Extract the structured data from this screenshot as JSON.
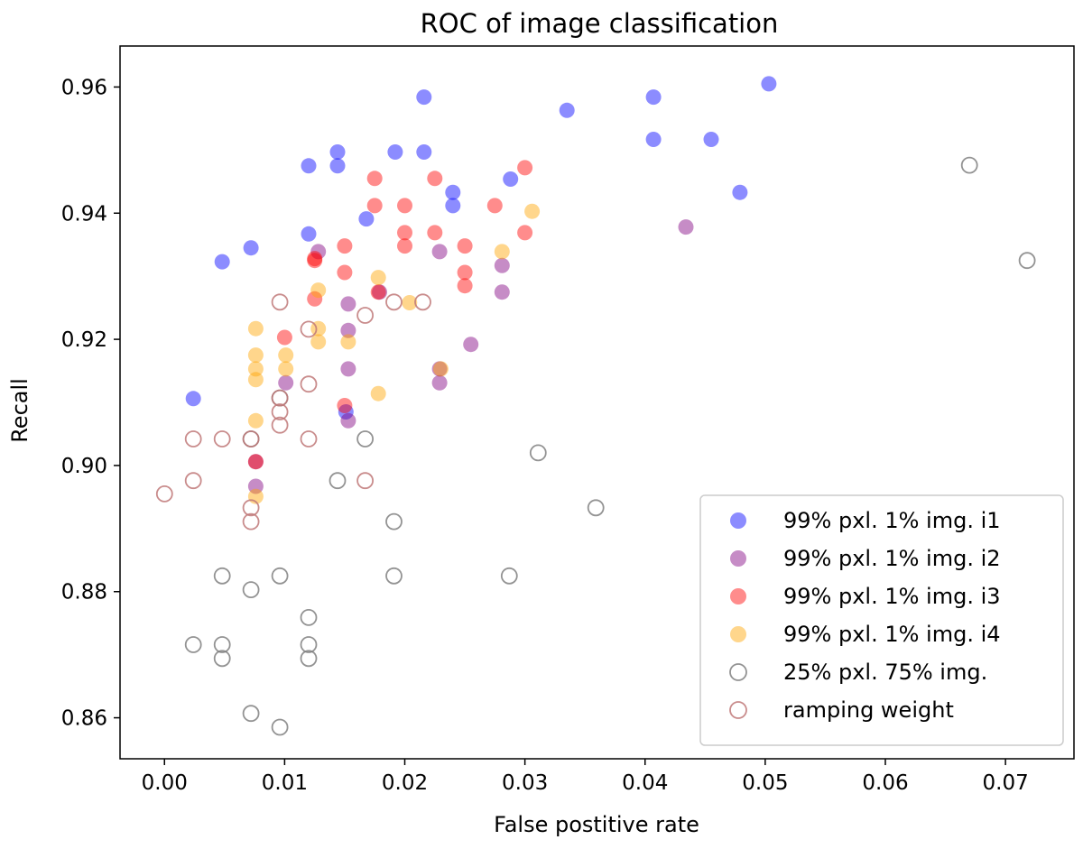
{
  "chart_data": {
    "type": "scatter",
    "title": "ROC of image classification",
    "xlabel": "False postitive rate",
    "ylabel": "Recall",
    "xlim": [
      -0.0037,
      0.0757
    ],
    "ylim": [
      0.8535,
      0.9665
    ],
    "xticks": [
      0.0,
      0.01,
      0.02,
      0.03,
      0.04,
      0.05,
      0.06,
      0.07
    ],
    "xtick_labels": [
      "0.00",
      "0.01",
      "0.02",
      "0.03",
      "0.04",
      "0.05",
      "0.06",
      "0.07"
    ],
    "yticks": [
      0.86,
      0.88,
      0.9,
      0.92,
      0.94,
      0.96
    ],
    "ytick_labels": [
      "0.86",
      "0.88",
      "0.90",
      "0.92",
      "0.94",
      "0.96"
    ],
    "grid": false,
    "legend_position": "lower-right",
    "series": [
      {
        "name": "99% pxl. 1% img. i1",
        "color": "#0000ff",
        "filled": true,
        "points": [
          [
            0.0024,
            0.9106
          ],
          [
            0.0048,
            0.9323
          ],
          [
            0.0072,
            0.9345
          ],
          [
            0.012,
            0.9475
          ],
          [
            0.012,
            0.9367
          ],
          [
            0.0144,
            0.9497
          ],
          [
            0.0144,
            0.9475
          ],
          [
            0.0168,
            0.9391
          ],
          [
            0.0192,
            0.9497
          ],
          [
            0.0216,
            0.9584
          ],
          [
            0.0216,
            0.9497
          ],
          [
            0.024,
            0.9433
          ],
          [
            0.024,
            0.9412
          ],
          [
            0.0288,
            0.9454
          ],
          [
            0.0335,
            0.9563
          ],
          [
            0.0407,
            0.9584
          ],
          [
            0.0407,
            0.9517
          ],
          [
            0.0455,
            0.9517
          ],
          [
            0.0479,
            0.9433
          ],
          [
            0.0503,
            0.9605
          ],
          [
            0.0151,
            0.9085
          ]
        ]
      },
      {
        "name": "99% pxl. 1% img. i2",
        "color": "#800080",
        "filled": true,
        "points": [
          [
            0.0076,
            0.9006
          ],
          [
            0.0076,
            0.8967
          ],
          [
            0.0101,
            0.9131
          ],
          [
            0.0128,
            0.9339
          ],
          [
            0.0153,
            0.9256
          ],
          [
            0.0153,
            0.9214
          ],
          [
            0.0153,
            0.9153
          ],
          [
            0.0153,
            0.9071
          ],
          [
            0.0179,
            0.9275
          ],
          [
            0.0229,
            0.9339
          ],
          [
            0.0229,
            0.9153
          ],
          [
            0.0229,
            0.9131
          ],
          [
            0.0255,
            0.9192
          ],
          [
            0.0281,
            0.9317
          ],
          [
            0.0281,
            0.9275
          ],
          [
            0.0434,
            0.9378
          ]
        ]
      },
      {
        "name": "99% pxl. 1% img. i3",
        "color": "#ff0000",
        "filled": true,
        "points": [
          [
            0.01,
            0.9203
          ],
          [
            0.0125,
            0.9328
          ],
          [
            0.0125,
            0.9325
          ],
          [
            0.0125,
            0.9264
          ],
          [
            0.015,
            0.9348
          ],
          [
            0.015,
            0.9306
          ],
          [
            0.015,
            0.9095
          ],
          [
            0.0175,
            0.9455
          ],
          [
            0.0175,
            0.9412
          ],
          [
            0.02,
            0.9412
          ],
          [
            0.02,
            0.9369
          ],
          [
            0.02,
            0.9348
          ],
          [
            0.0225,
            0.9455
          ],
          [
            0.0225,
            0.9369
          ],
          [
            0.025,
            0.9348
          ],
          [
            0.025,
            0.9306
          ],
          [
            0.025,
            0.9285
          ],
          [
            0.0275,
            0.9412
          ],
          [
            0.03,
            0.9472
          ],
          [
            0.03,
            0.9369
          ],
          [
            0.0076,
            0.9006
          ],
          [
            0.0178,
            0.9275
          ]
        ]
      },
      {
        "name": "99% pxl. 1% img. i4",
        "color": "#ffa500",
        "filled": true,
        "points": [
          [
            0.0076,
            0.9217
          ],
          [
            0.0076,
            0.9175
          ],
          [
            0.0076,
            0.9153
          ],
          [
            0.0076,
            0.9136
          ],
          [
            0.0076,
            0.9071
          ],
          [
            0.0076,
            0.8951
          ],
          [
            0.0101,
            0.9175
          ],
          [
            0.0101,
            0.9153
          ],
          [
            0.0128,
            0.9278
          ],
          [
            0.0128,
            0.9217
          ],
          [
            0.0128,
            0.9196
          ],
          [
            0.0153,
            0.9196
          ],
          [
            0.0178,
            0.9298
          ],
          [
            0.0178,
            0.9114
          ],
          [
            0.0204,
            0.9258
          ],
          [
            0.023,
            0.9153
          ],
          [
            0.0281,
            0.9339
          ],
          [
            0.0306,
            0.9403
          ]
        ]
      },
      {
        "name": "25% pxl. 75% img.",
        "color": "#808080",
        "filled": false,
        "points": [
          [
            0.0024,
            0.8716
          ],
          [
            0.0048,
            0.8825
          ],
          [
            0.0048,
            0.8716
          ],
          [
            0.0048,
            0.8694
          ],
          [
            0.0072,
            0.9042
          ],
          [
            0.0072,
            0.8803
          ],
          [
            0.0072,
            0.8607
          ],
          [
            0.0096,
            0.9107
          ],
          [
            0.0096,
            0.8825
          ],
          [
            0.0096,
            0.8585
          ],
          [
            0.012,
            0.8759
          ],
          [
            0.012,
            0.8716
          ],
          [
            0.012,
            0.8694
          ],
          [
            0.0144,
            0.8976
          ],
          [
            0.0167,
            0.9042
          ],
          [
            0.0191,
            0.8911
          ],
          [
            0.0191,
            0.8825
          ],
          [
            0.0287,
            0.8825
          ],
          [
            0.0311,
            0.902
          ],
          [
            0.0359,
            0.8933
          ],
          [
            0.067,
            0.9476
          ],
          [
            0.0718,
            0.9325
          ]
        ]
      },
      {
        "name": "ramping weight",
        "color": "#c07878",
        "filled": false,
        "points": [
          [
            0.0,
            0.8955
          ],
          [
            0.0024,
            0.9042
          ],
          [
            0.0024,
            0.8976
          ],
          [
            0.0048,
            0.9042
          ],
          [
            0.0072,
            0.9042
          ],
          [
            0.0072,
            0.8933
          ],
          [
            0.0072,
            0.8911
          ],
          [
            0.0096,
            0.9259
          ],
          [
            0.0096,
            0.9107
          ],
          [
            0.0096,
            0.9085
          ],
          [
            0.0096,
            0.9064
          ],
          [
            0.012,
            0.9216
          ],
          [
            0.012,
            0.9129
          ],
          [
            0.012,
            0.9042
          ],
          [
            0.0167,
            0.9238
          ],
          [
            0.0167,
            0.8976
          ],
          [
            0.0191,
            0.9259
          ],
          [
            0.0215,
            0.9259
          ]
        ]
      }
    ]
  }
}
